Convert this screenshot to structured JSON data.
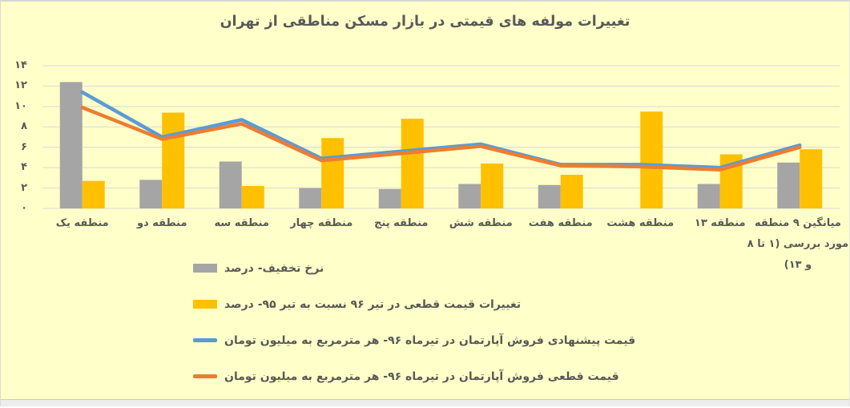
{
  "page": {
    "background": "#FFFFC9",
    "bottom_strip_color": "#EDEDED",
    "text_color": "#595959"
  },
  "chart_data": {
    "type": "combo-bar-line",
    "title": "تغییرات مولفه های قیمتی در بازار مسکن مناطقی از تهران",
    "direction": "rtl",
    "grid": true,
    "gridline_color": "#D9D9D9",
    "legend_position": "bottom-left",
    "ylim": [
      0,
      14
    ],
    "y_tick_values": [
      0,
      2,
      4,
      6,
      8,
      10,
      12,
      14
    ],
    "y_tick_labels": [
      "۰",
      "۲",
      "۴",
      "۶",
      "۸",
      "۱۰",
      "۱۲",
      "۱۴"
    ],
    "categories": [
      "منطقه یک",
      "منطقه دو",
      "منطقه سه",
      "منطقه چهار",
      "منطقه پنج",
      "منطقه شش",
      "منطقه هفت",
      "منطقه هشت",
      "منطقه ۱۳",
      "میانگین ۹ منطقه مورد بررسی (۱ تا ۸ و ۱۳)"
    ],
    "series": [
      {
        "name": "نرخ تخفیف- درصد",
        "type": "bar",
        "color": "#A5A5A5",
        "values": [
          12.4,
          2.8,
          4.6,
          2.0,
          1.9,
          2.4,
          2.3,
          0,
          2.4,
          4.5
        ]
      },
      {
        "name": "تغییرات قیمت قطعی در تیر ۹۶ نسبت به تیر ۹۵- درصد",
        "type": "bar",
        "color": "#FFC000",
        "values": [
          2.7,
          9.4,
          2.2,
          6.9,
          8.8,
          4.4,
          3.3,
          9.5,
          5.3,
          5.8
        ]
      },
      {
        "name": "قیمت پیشنهادی فروش آپارتمان در تیرماه ۹۶- هر مترمربع به میلیون تومان",
        "type": "line",
        "color": "#5B9BD5",
        "values": [
          11.4,
          7.0,
          8.7,
          4.9,
          5.6,
          6.3,
          4.3,
          4.3,
          4.0,
          6.2
        ]
      },
      {
        "name": "قیمت قطعی فروش آپارتمان در تیرماه ۹۶- هر مترمربع به میلیون تومان",
        "type": "line",
        "color": "#ED7D31",
        "values": [
          9.9,
          6.8,
          8.3,
          4.7,
          5.4,
          6.1,
          4.2,
          4.1,
          3.8,
          6.0
        ]
      }
    ]
  }
}
